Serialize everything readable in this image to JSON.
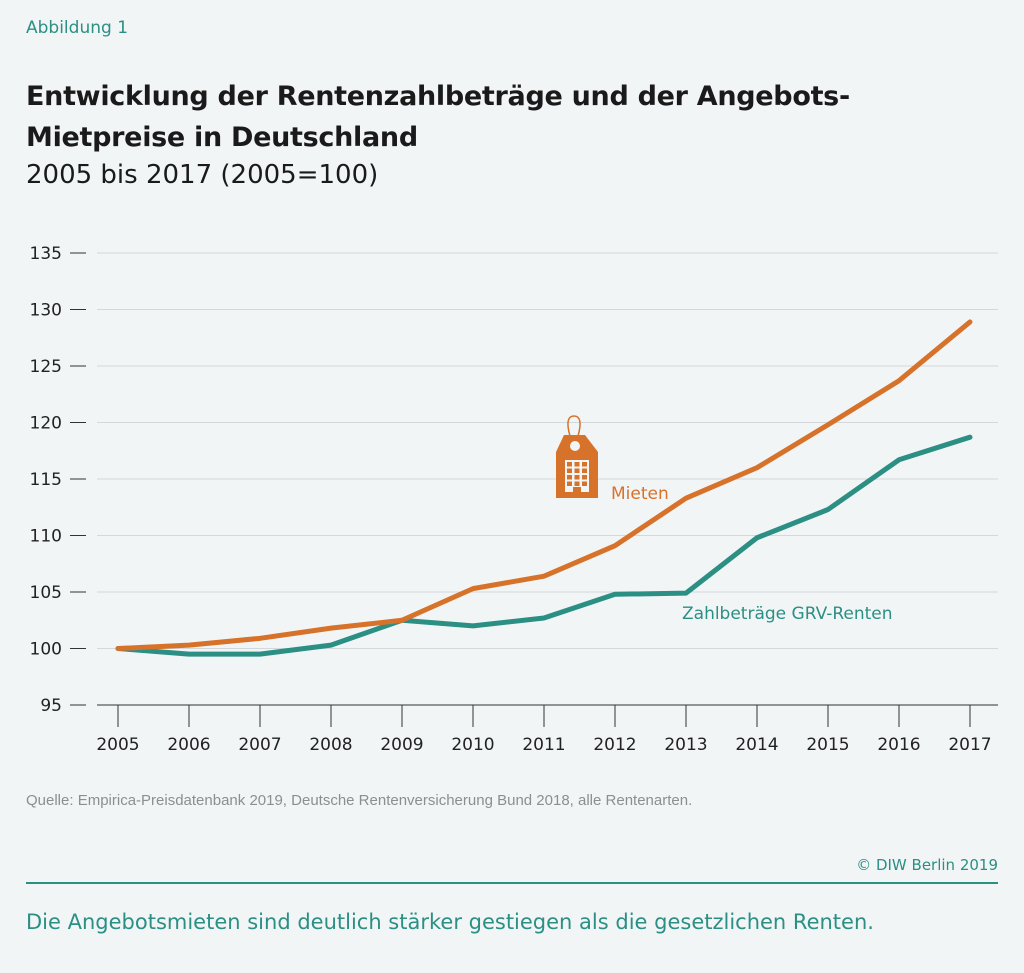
{
  "figure_label": "Abbildung 1",
  "source": "Quelle: Empirica-Preisdatenbank 2019, Deutsche Rentenversicherung Bund 2018, alle Rentenarten.",
  "copyright": "© DIW Berlin 2019",
  "caption": "Die Angebotsmieten sind deutlich stärker gestiegen als die gesetzlichen Renten.",
  "chart_data": {
    "type": "line",
    "title": "Entwicklung der Rentenzahlbeträge und der Angebots-Mietpreise in Deutschland",
    "subtitle": "2005 bis 2017 (2005=100)",
    "x": [
      "2005",
      "2006",
      "2007",
      "2008",
      "2009",
      "2010",
      "2011",
      "2012",
      "2013",
      "2014",
      "2015",
      "2016",
      "2017"
    ],
    "ylim": [
      95,
      135
    ],
    "yticks": [
      95,
      100,
      105,
      110,
      115,
      120,
      125,
      130,
      135
    ],
    "grid": "horizontal",
    "icon": "price-tag-building-icon",
    "series": [
      {
        "name": "Mieten",
        "color": "#d7722a",
        "values": [
          100,
          100.3,
          100.9,
          101.8,
          102.5,
          105.3,
          106.4,
          109.1,
          113.3,
          116.0,
          119.8,
          123.7,
          128.9
        ]
      },
      {
        "name": "Zahlbeträge GRV-Renten",
        "color": "#2b8f84",
        "values": [
          100,
          99.5,
          99.5,
          100.3,
          102.5,
          102.0,
          102.7,
          104.8,
          104.9,
          109.8,
          112.3,
          116.7,
          118.7
        ]
      }
    ]
  }
}
